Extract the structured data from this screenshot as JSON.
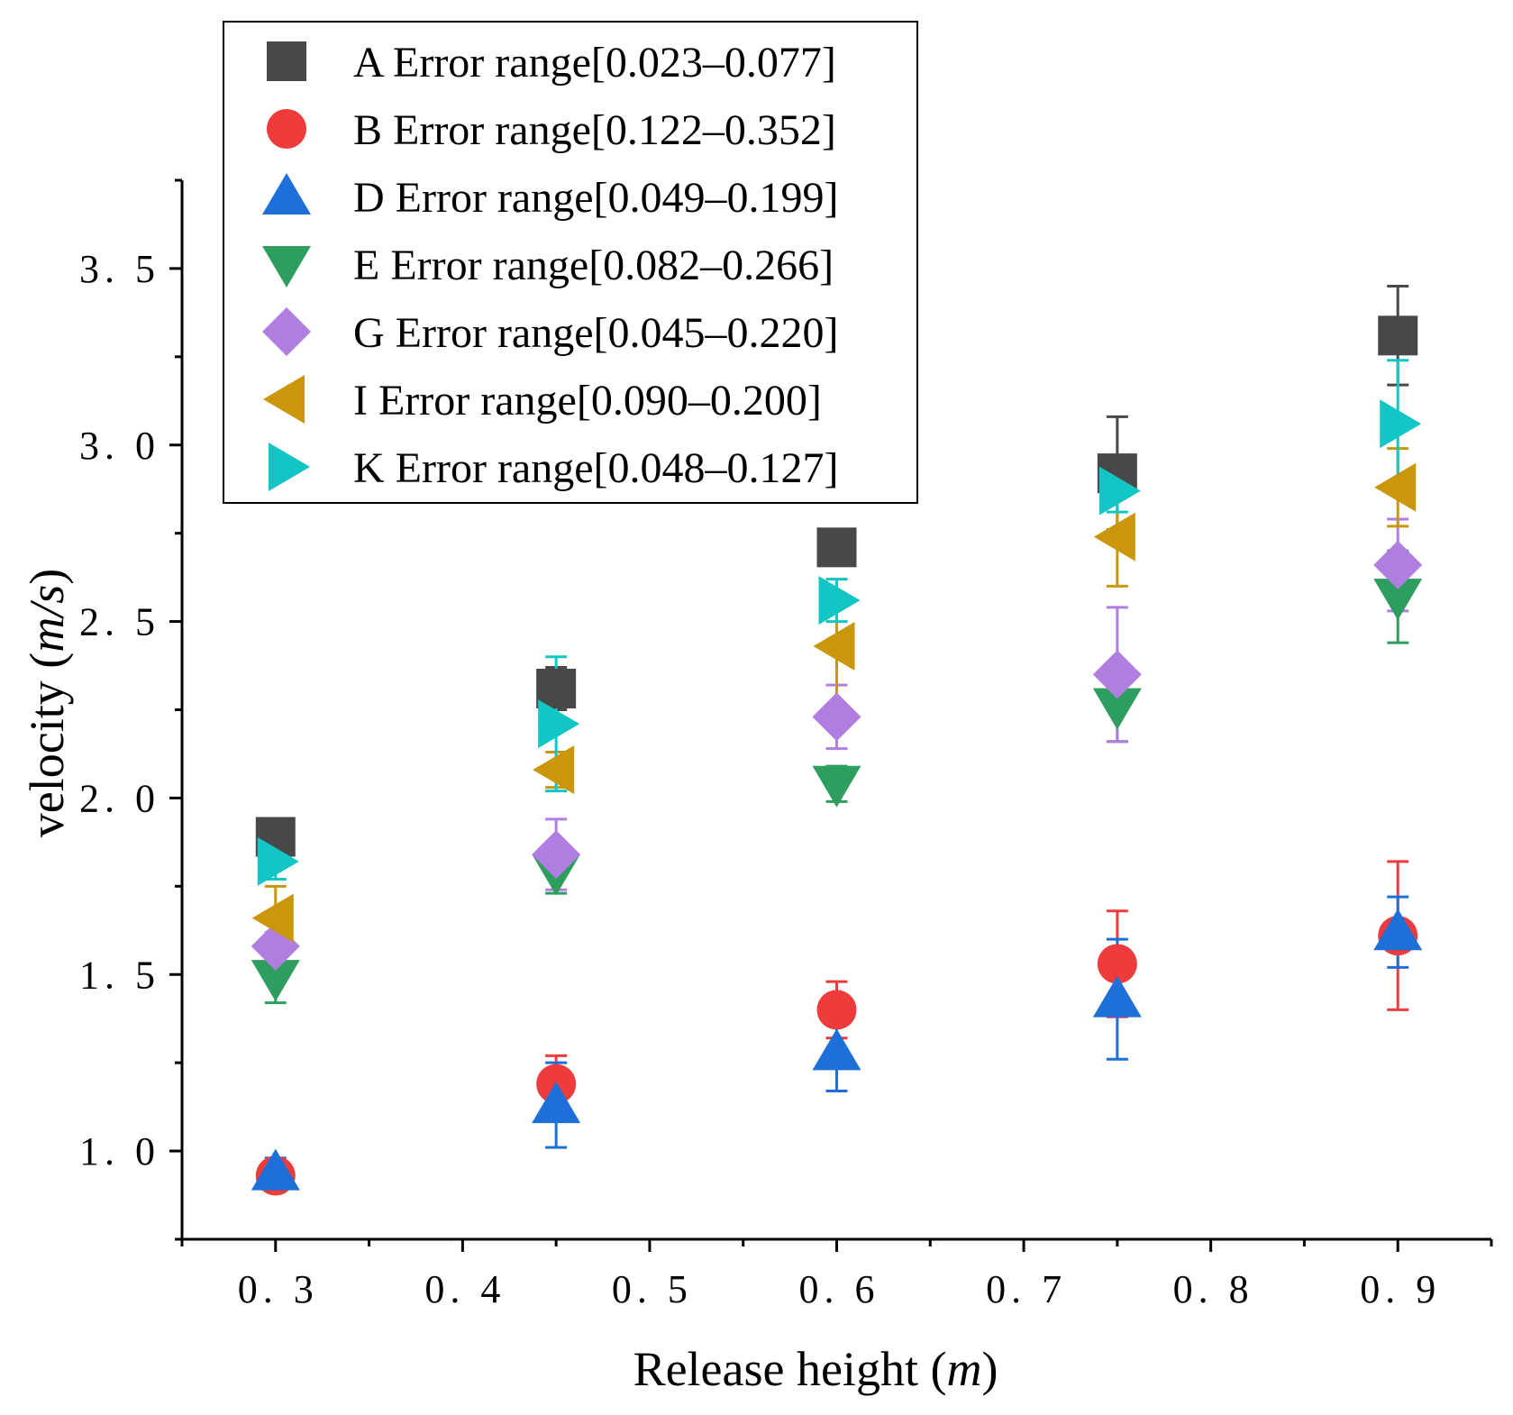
{
  "chart_data": {
    "type": "scatter",
    "xlabel": "Release height",
    "xlabel_unit": "m",
    "ylabel": "velocity",
    "ylabel_unit": "m/s",
    "xlim": [
      0.25,
      0.95
    ],
    "ylim": [
      0.75,
      3.75
    ],
    "x_ticks": [
      {
        "value": 0.3,
        "label": "0. 3"
      },
      {
        "value": 0.4,
        "label": "0. 4"
      },
      {
        "value": 0.5,
        "label": "0. 5"
      },
      {
        "value": 0.6,
        "label": "0. 6"
      },
      {
        "value": 0.7,
        "label": "0. 7"
      },
      {
        "value": 0.8,
        "label": "0. 8"
      },
      {
        "value": 0.9,
        "label": "0. 9"
      }
    ],
    "y_ticks": [
      {
        "value": 1.0,
        "label": "1. 0"
      },
      {
        "value": 1.5,
        "label": "1. 5"
      },
      {
        "value": 2.0,
        "label": "2. 0"
      },
      {
        "value": 2.5,
        "label": "2. 5"
      },
      {
        "value": 3.0,
        "label": "3. 0"
      },
      {
        "value": 3.5,
        "label": "3. 5"
      }
    ],
    "grid": false,
    "legend_position": "top-left",
    "x": [
      0.3,
      0.45,
      0.6,
      0.75,
      0.9
    ],
    "series": [
      {
        "name": "A",
        "legend_label": "A Error range[0.023–0.077]",
        "marker": "square",
        "color": "#484848",
        "values": [
          1.89,
          2.31,
          2.71,
          2.92,
          3.31
        ],
        "err": [
          0.05,
          0.06,
          0.03,
          0.16,
          0.14
        ]
      },
      {
        "name": "B",
        "legend_label": "B Error range[0.122–0.352]",
        "marker": "circle",
        "color": "#ee3b3b",
        "values": [
          0.93,
          1.19,
          1.4,
          1.53,
          1.61
        ],
        "err": [
          0.04,
          0.08,
          0.08,
          0.15,
          0.21
        ]
      },
      {
        "name": "D",
        "legend_label": "D Error range[0.049–0.199]",
        "marker": "triangle-up",
        "color": "#1f6fd8",
        "values": [
          0.94,
          1.13,
          1.28,
          1.43,
          1.62
        ],
        "err": [
          0.04,
          0.12,
          0.11,
          0.17,
          0.1
        ]
      },
      {
        "name": "E",
        "legend_label": "E Error range[0.082–0.266]",
        "marker": "triangle-down",
        "color": "#2e9e5e",
        "values": [
          1.49,
          1.79,
          2.04,
          2.26,
          2.57
        ],
        "err": [
          0.07,
          0.06,
          0.05,
          0.1,
          0.13
        ]
      },
      {
        "name": "G",
        "legend_label": "G Error range[0.045–0.220]",
        "marker": "diamond",
        "color": "#b07ee0",
        "values": [
          1.58,
          1.84,
          2.23,
          2.35,
          2.66
        ],
        "err": [
          0.04,
          0.1,
          0.09,
          0.19,
          0.13
        ]
      },
      {
        "name": "I",
        "legend_label": " I Error range[0.090–0.200]",
        "marker": "triangle-left",
        "color": "#c9960c",
        "values": [
          1.66,
          2.08,
          2.43,
          2.74,
          2.88
        ],
        "err": [
          0.09,
          0.05,
          0.19,
          0.14,
          0.11
        ]
      },
      {
        "name": "K",
        "legend_label": "K Error range[0.048–0.127]",
        "marker": "triangle-right",
        "color": "#12c6c6",
        "values": [
          1.82,
          2.21,
          2.56,
          2.87,
          3.06
        ],
        "err": [
          0.05,
          0.19,
          0.06,
          0.06,
          0.18
        ]
      }
    ]
  }
}
